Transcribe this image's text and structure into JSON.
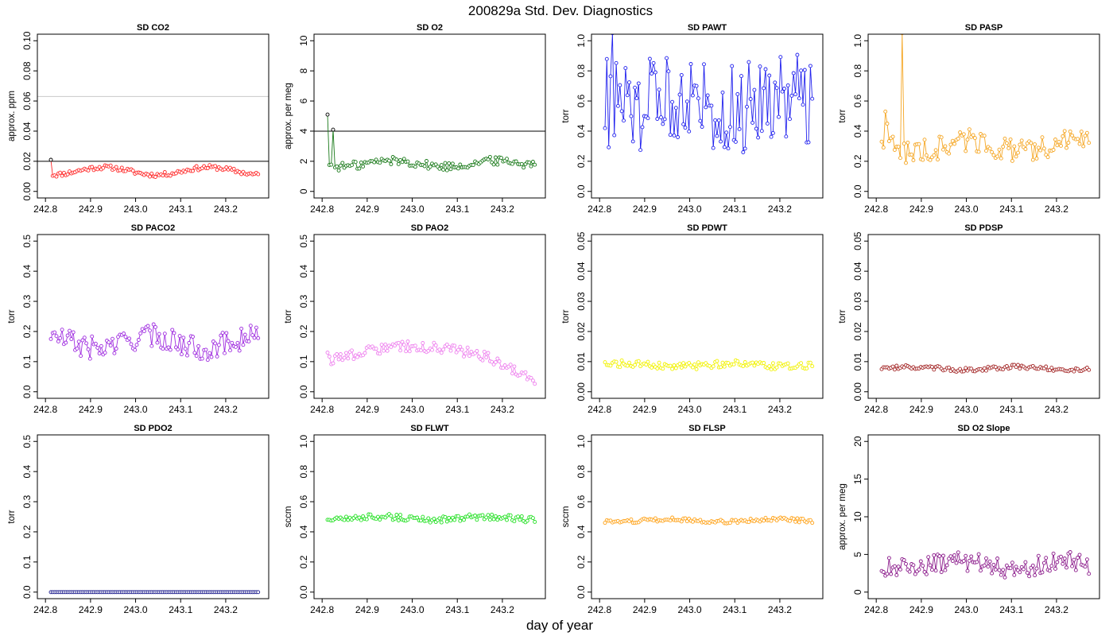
{
  "page": {
    "title": "200829a   Std. Dev. Diagnostics",
    "xlabel": "day of year"
  },
  "colors": {
    "axis": "#000000",
    "ref_line": "#000000",
    "ref_line_light": "#c8c8c8"
  },
  "chart_data": [
    {
      "id": "co2",
      "type": "line",
      "title": "SD CO2",
      "ylabel": "approx. ppm",
      "color": "#ff2a2a",
      "ylim": [
        0,
        0.1
      ],
      "yticks": [
        0,
        0.02,
        0.04,
        0.06,
        0.08,
        0.1
      ],
      "ytick_labels": [
        "0.00",
        "0.02",
        "0.04",
        "0.06",
        "0.08",
        "0.10"
      ],
      "xlim": [
        242.8,
        243.28
      ],
      "xticks": [
        242.8,
        242.9,
        243.0,
        243.1,
        243.2
      ],
      "xtick_labels": [
        "242.8",
        "242.9",
        "243.0",
        "243.1",
        "243.2"
      ],
      "ref_lines": [
        {
          "y": 0.02,
          "style": "dark"
        },
        {
          "y": 0.063,
          "style": "light"
        }
      ],
      "series": {
        "base": 0.0135,
        "amp": 0.0025,
        "noise": 0.0015,
        "first": 0.021,
        "first_color": "#000000"
      }
    },
    {
      "id": "o2",
      "type": "line",
      "title": "SD O2",
      "ylabel": "approx. per meg",
      "color": "#1a7a1a",
      "ylim": [
        0,
        10
      ],
      "yticks": [
        0,
        2,
        4,
        6,
        8,
        10
      ],
      "ytick_labels": [
        "0",
        "2",
        "4",
        "6",
        "8",
        "10"
      ],
      "xlim": [
        242.8,
        243.28
      ],
      "xticks": [
        242.8,
        242.9,
        243.0,
        243.1,
        243.2
      ],
      "xtick_labels": [
        "242.8",
        "242.9",
        "243.0",
        "243.1",
        "243.2"
      ],
      "ref_lines": [
        {
          "y": 4,
          "style": "dark"
        }
      ],
      "series": {
        "base": 1.85,
        "amp": 0.2,
        "noise": 0.28,
        "first": 5.1,
        "first_color": "#000000",
        "spikes": [
          [
            3,
            4.1
          ]
        ],
        "spike_color": "#000000"
      }
    },
    {
      "id": "pawt",
      "type": "line",
      "title": "SD PAWT",
      "ylabel": "torr",
      "color": "#2222ee",
      "ylim": [
        0,
        1
      ],
      "yticks": [
        0,
        0.2,
        0.4,
        0.6,
        0.8,
        1.0
      ],
      "ytick_labels": [
        "0.0",
        "0.2",
        "0.4",
        "0.6",
        "0.8",
        "1.0"
      ],
      "xlim": [
        242.8,
        243.28
      ],
      "xticks": [
        242.8,
        242.9,
        243.0,
        243.1,
        243.2
      ],
      "xtick_labels": [
        "242.8",
        "242.9",
        "243.0",
        "243.1",
        "243.2"
      ],
      "ref_lines": [],
      "series": {
        "base": 0.6,
        "amp": 0.05,
        "noise": 0.3,
        "first": 0.42,
        "spikes": [
          [
            4,
            1.05
          ]
        ]
      }
    },
    {
      "id": "pasp",
      "type": "line",
      "title": "SD PASP",
      "ylabel": "torr",
      "color": "#f5a623",
      "ylim": [
        0,
        1
      ],
      "yticks": [
        0,
        0.2,
        0.4,
        0.6,
        0.8,
        1.0
      ],
      "ytick_labels": [
        "0.0",
        "0.2",
        "0.4",
        "0.6",
        "0.8",
        "1.0"
      ],
      "xlim": [
        242.8,
        243.28
      ],
      "xticks": [
        242.8,
        242.9,
        243.0,
        243.1,
        243.2
      ],
      "xtick_labels": [
        "242.8",
        "242.9",
        "243.0",
        "243.1",
        "243.2"
      ],
      "ref_lines": [],
      "series": {
        "base": 0.3,
        "amp": 0.04,
        "noise": 0.08,
        "first": 0.33,
        "spikes": [
          [
            2,
            0.53
          ],
          [
            3,
            0.45
          ],
          [
            11,
            1.05
          ]
        ]
      }
    },
    {
      "id": "paco2",
      "type": "line",
      "title": "SD PACO2",
      "ylabel": "torr",
      "color": "#a02ee0",
      "ylim": [
        0,
        0.5
      ],
      "yticks": [
        0,
        0.1,
        0.2,
        0.3,
        0.4,
        0.5
      ],
      "ytick_labels": [
        "0.0",
        "0.1",
        "0.2",
        "0.3",
        "0.4",
        "0.5"
      ],
      "xlim": [
        242.8,
        243.28
      ],
      "xticks": [
        242.8,
        242.9,
        243.0,
        243.1,
        243.2
      ],
      "xtick_labels": [
        "242.8",
        "242.9",
        "243.0",
        "243.1",
        "243.2"
      ],
      "ref_lines": [],
      "series": {
        "base": 0.165,
        "amp": 0.02,
        "noise": 0.04,
        "first": 0.175,
        "spikes": [
          [
            1,
            0.195
          ]
        ]
      }
    },
    {
      "id": "pao2",
      "type": "line",
      "title": "SD PAO2",
      "ylabel": "torr",
      "color": "#ee82ee",
      "ylim": [
        0,
        0.5
      ],
      "yticks": [
        0,
        0.1,
        0.2,
        0.3,
        0.4,
        0.5
      ],
      "ytick_labels": [
        "0.0",
        "0.1",
        "0.2",
        "0.3",
        "0.4",
        "0.5"
      ],
      "xlim": [
        242.8,
        243.28
      ],
      "xticks": [
        242.8,
        242.9,
        243.0,
        243.1,
        243.2
      ],
      "xtick_labels": [
        "242.8",
        "242.9",
        "243.0",
        "243.1",
        "243.2"
      ],
      "ref_lines": [],
      "series": {
        "base": 0.12,
        "amp": 0.025,
        "noise": 0.018,
        "first": 0.13,
        "trend": "arc"
      }
    },
    {
      "id": "pdwt",
      "type": "line",
      "title": "SD PDWT",
      "ylabel": "torr",
      "color": "#f2f200",
      "ylim": [
        0,
        0.05
      ],
      "yticks": [
        0,
        0.01,
        0.02,
        0.03,
        0.04,
        0.05
      ],
      "ytick_labels": [
        "0.00",
        "0.01",
        "0.02",
        "0.03",
        "0.04",
        "0.05"
      ],
      "xlim": [
        242.8,
        243.28
      ],
      "xticks": [
        242.8,
        242.9,
        243.0,
        243.1,
        243.2
      ],
      "xtick_labels": [
        "242.8",
        "242.9",
        "243.0",
        "243.1",
        "243.2"
      ],
      "ref_lines": [],
      "series": {
        "base": 0.0088,
        "amp": 0.0005,
        "noise": 0.0012,
        "first": 0.0098
      }
    },
    {
      "id": "pdsp",
      "type": "line",
      "title": "SD PDSP",
      "ylabel": "torr",
      "color": "#a52a2a",
      "ylim": [
        0,
        0.05
      ],
      "yticks": [
        0,
        0.01,
        0.02,
        0.03,
        0.04,
        0.05
      ],
      "ytick_labels": [
        "0.00",
        "0.01",
        "0.02",
        "0.03",
        "0.04",
        "0.05"
      ],
      "xlim": [
        242.8,
        243.28
      ],
      "xticks": [
        242.8,
        242.9,
        243.0,
        243.1,
        243.2
      ],
      "xtick_labels": [
        "242.8",
        "242.9",
        "243.0",
        "243.1",
        "243.2"
      ],
      "ref_lines": [],
      "series": {
        "base": 0.0078,
        "amp": 0.0005,
        "noise": 0.0007,
        "first": 0.0075
      }
    },
    {
      "id": "pdo2",
      "type": "line",
      "title": "SD PDO2",
      "ylabel": "torr",
      "color": "#1a1a8c",
      "ylim": [
        0,
        0.5
      ],
      "yticks": [
        0,
        0.1,
        0.2,
        0.3,
        0.4,
        0.5
      ],
      "ytick_labels": [
        "0.0",
        "0.1",
        "0.2",
        "0.3",
        "0.4",
        "0.5"
      ],
      "xlim": [
        242.8,
        243.28
      ],
      "xticks": [
        242.8,
        242.9,
        243.0,
        243.1,
        243.2
      ],
      "xtick_labels": [
        "242.8",
        "242.9",
        "243.0",
        "243.1",
        "243.2"
      ],
      "ref_lines": [],
      "series": {
        "base": 0.0,
        "amp": 0,
        "noise": 0,
        "first": 0.0
      }
    },
    {
      "id": "flwt",
      "type": "line",
      "title": "SD FLWT",
      "ylabel": "sccm",
      "color": "#22e022",
      "ylim": [
        0,
        1
      ],
      "yticks": [
        0,
        0.2,
        0.4,
        0.6,
        0.8,
        1.0
      ],
      "ytick_labels": [
        "0.0",
        "0.2",
        "0.4",
        "0.6",
        "0.8",
        "1.0"
      ],
      "xlim": [
        242.8,
        243.28
      ],
      "xticks": [
        242.8,
        242.9,
        243.0,
        243.1,
        243.2
      ],
      "xtick_labels": [
        "242.8",
        "242.9",
        "243.0",
        "243.1",
        "243.2"
      ],
      "ref_lines": [],
      "series": {
        "base": 0.49,
        "amp": 0.01,
        "noise": 0.02,
        "first": 0.48
      }
    },
    {
      "id": "flsp",
      "type": "line",
      "title": "SD FLSP",
      "ylabel": "sccm",
      "color": "#ffa31a",
      "ylim": [
        0,
        1
      ],
      "yticks": [
        0,
        0.2,
        0.4,
        0.6,
        0.8,
        1.0
      ],
      "ytick_labels": [
        "0.0",
        "0.2",
        "0.4",
        "0.6",
        "0.8",
        "1.0"
      ],
      "xlim": [
        242.8,
        243.28
      ],
      "xticks": [
        242.8,
        242.9,
        243.0,
        243.1,
        243.2
      ],
      "xtick_labels": [
        "242.8",
        "242.9",
        "243.0",
        "243.1",
        "243.2"
      ],
      "ref_lines": [],
      "series": {
        "base": 0.475,
        "amp": 0.008,
        "noise": 0.013,
        "first": 0.46
      }
    },
    {
      "id": "o2slope",
      "type": "line",
      "title": "SD O2 Slope",
      "ylabel": "approx. per meg",
      "color": "#8b1a8b",
      "ylim": [
        0,
        20
      ],
      "yticks": [
        0,
        5,
        10,
        15,
        20
      ],
      "ytick_labels": [
        "0",
        "5",
        "10",
        "15",
        "20"
      ],
      "xlim": [
        242.8,
        243.28
      ],
      "xticks": [
        242.8,
        242.9,
        243.0,
        243.1,
        243.2
      ],
      "xtick_labels": [
        "242.8",
        "242.9",
        "243.0",
        "243.1",
        "243.2"
      ],
      "ref_lines": [],
      "series": {
        "base": 3.6,
        "amp": 0.5,
        "noise": 1.3,
        "first": 2.8
      }
    }
  ]
}
